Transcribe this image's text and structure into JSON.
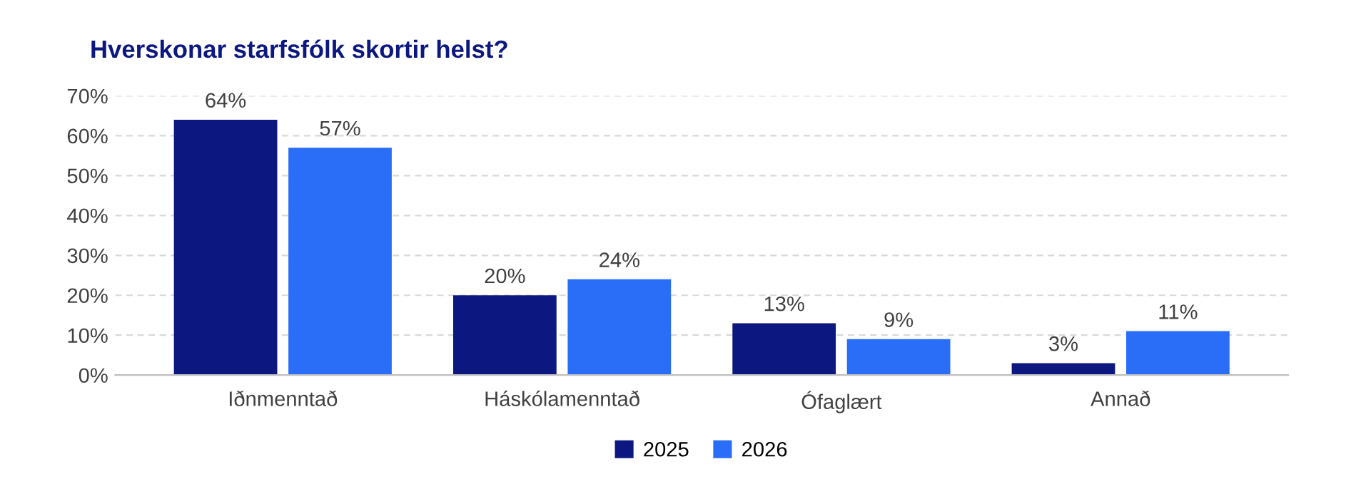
{
  "chart_data": {
    "type": "bar",
    "title": "Hverskonar starfsfólk skortir helst?",
    "categories": [
      "Iðnmenntað",
      "Háskólamenntað",
      "Ófaglært",
      "Annað"
    ],
    "series": [
      {
        "name": "2025",
        "color": "#0c1880",
        "values": [
          64,
          20,
          13,
          3
        ],
        "value_labels": [
          "64%",
          "20%",
          "13%",
          "3%"
        ]
      },
      {
        "name": "2026",
        "color": "#2a6ef7",
        "values": [
          57,
          24,
          9,
          11
        ],
        "value_labels": [
          "57%",
          "24%",
          "9%",
          "11%"
        ]
      }
    ],
    "ylim": [
      0,
      70
    ],
    "yticks": [
      {
        "value": 0,
        "label": "0%"
      },
      {
        "value": 10,
        "label": "10%"
      },
      {
        "value": 20,
        "label": "20%"
      },
      {
        "value": 30,
        "label": "30%"
      },
      {
        "value": 40,
        "label": "40%"
      },
      {
        "value": 50,
        "label": "50%"
      },
      {
        "value": 60,
        "label": "60%"
      },
      {
        "value": 70,
        "label": "70%"
      }
    ],
    "grid": "y",
    "legend": "bottom"
  }
}
